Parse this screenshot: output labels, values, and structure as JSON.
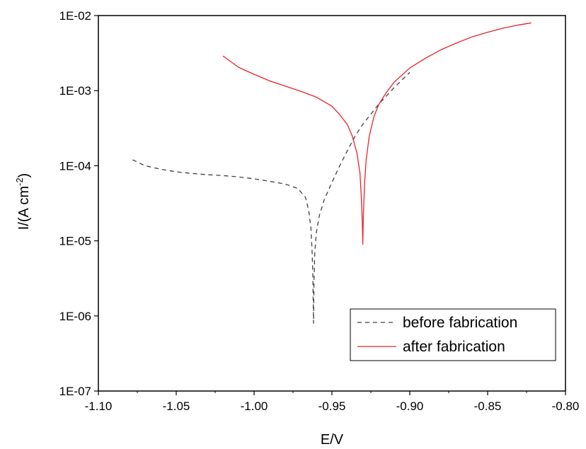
{
  "chart_data": {
    "type": "line",
    "title": "",
    "xlabel": "E/V",
    "ylabel_main": "I/(A cm",
    "ylabel_sup": "-2",
    "ylabel_close": ")",
    "x_scale": "linear",
    "y_scale": "log",
    "xlim": [
      -1.1,
      -0.8
    ],
    "ylim": [
      1e-07,
      0.01
    ],
    "x_ticks": [
      -1.1,
      -1.05,
      -1.0,
      -0.95,
      -0.9,
      -0.85,
      -0.8
    ],
    "x_tick_labels": [
      "-1.10",
      "-1.05",
      "-1.00",
      "-0.95",
      "-0.90",
      "-0.85",
      "-0.80"
    ],
    "y_ticks": [
      1e-07,
      1e-06,
      1e-05,
      0.0001,
      0.001,
      0.01
    ],
    "y_tick_labels": [
      "1E-07",
      "1E-06",
      "1E-05",
      "1E-04",
      "1E-03",
      "1E-02"
    ],
    "grid": false,
    "legend_position": "bottom-right",
    "series": [
      {
        "name": "before fabrication",
        "color": "#404040",
        "dash": "dashed",
        "points": [
          [
            -1.078,
            0.00012
          ],
          [
            -1.07,
            0.0001
          ],
          [
            -1.06,
            9e-05
          ],
          [
            -1.05,
            8.3e-05
          ],
          [
            -1.04,
            7.9e-05
          ],
          [
            -1.03,
            7.6e-05
          ],
          [
            -1.02,
            7.4e-05
          ],
          [
            -1.01,
            7.1e-05
          ],
          [
            -1.0,
            6.7e-05
          ],
          [
            -0.99,
            6.2e-05
          ],
          [
            -0.98,
            5.7e-05
          ],
          [
            -0.972,
            5e-05
          ],
          [
            -0.967,
            3.8e-05
          ],
          [
            -0.965,
            2.6e-05
          ],
          [
            -0.9635,
            1.5e-05
          ],
          [
            -0.9628,
            8e-06
          ],
          [
            -0.9623,
            4e-06
          ],
          [
            -0.962,
            1.5e-06
          ],
          [
            -0.9618,
            8e-07
          ],
          [
            -0.9615,
            3e-06
          ],
          [
            -0.961,
            7e-06
          ],
          [
            -0.96,
            1.3e-05
          ],
          [
            -0.958,
            2.2e-05
          ],
          [
            -0.955,
            3.5e-05
          ],
          [
            -0.95,
            6e-05
          ],
          [
            -0.945,
            0.0001
          ],
          [
            -0.94,
            0.00016
          ],
          [
            -0.935,
            0.00025
          ],
          [
            -0.93,
            0.00036
          ],
          [
            -0.92,
            0.00066
          ],
          [
            -0.91,
            0.0011
          ],
          [
            -0.9,
            0.00175
          ]
        ]
      },
      {
        "name": "after fabrication",
        "color": "#e8232b",
        "dash": "solid",
        "points": [
          [
            -1.02,
            0.0029
          ],
          [
            -1.01,
            0.00205
          ],
          [
            -1.0,
            0.00165
          ],
          [
            -0.99,
            0.00135
          ],
          [
            -0.98,
            0.00115
          ],
          [
            -0.97,
            0.00098
          ],
          [
            -0.96,
            0.00082
          ],
          [
            -0.95,
            0.00062
          ],
          [
            -0.945,
            0.00048
          ],
          [
            -0.94,
            0.00035
          ],
          [
            -0.937,
            0.00025
          ],
          [
            -0.934,
            0.00015
          ],
          [
            -0.932,
            8e-05
          ],
          [
            -0.9312,
            4e-05
          ],
          [
            -0.9305,
            1.8e-05
          ],
          [
            -0.9302,
            9e-06
          ],
          [
            -0.9298,
            2.2e-05
          ],
          [
            -0.929,
            6e-05
          ],
          [
            -0.928,
            0.00012
          ],
          [
            -0.926,
            0.00025
          ],
          [
            -0.923,
            0.00045
          ],
          [
            -0.92,
            0.00065
          ],
          [
            -0.915,
            0.00095
          ],
          [
            -0.91,
            0.0013
          ],
          [
            -0.9,
            0.002
          ],
          [
            -0.89,
            0.0027
          ],
          [
            -0.88,
            0.0035
          ],
          [
            -0.87,
            0.0043
          ],
          [
            -0.86,
            0.0052
          ],
          [
            -0.85,
            0.006
          ],
          [
            -0.84,
            0.0068
          ],
          [
            -0.83,
            0.0075
          ],
          [
            -0.822,
            0.008
          ]
        ]
      }
    ]
  }
}
